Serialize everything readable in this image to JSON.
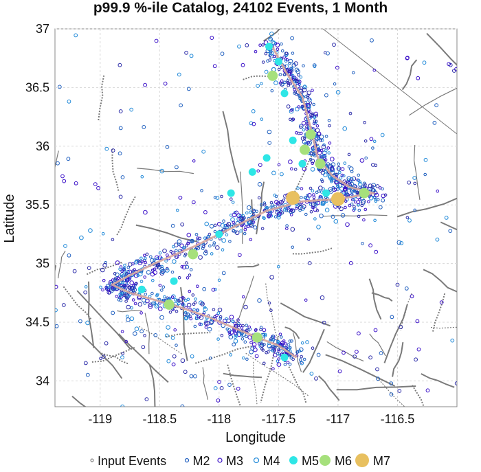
{
  "chart_data": {
    "type": "scatter",
    "title": "p99.9 %-ile Catalog, 24102 Events, 1 Month",
    "xlabel": "Longitude",
    "ylabel": "Latitude",
    "xlim": [
      -119.38,
      -116.0
    ],
    "ylim": [
      33.78,
      37.0
    ],
    "xticks": [
      -119,
      -118.5,
      -118,
      -117.5,
      -117,
      -116.5
    ],
    "xtick_labels": [
      "-119",
      "-118.5",
      "-118",
      "-117.5",
      "-117",
      "-116.5"
    ],
    "yticks": [
      34,
      34.5,
      35,
      35.5,
      36,
      36.5,
      37
    ],
    "ytick_labels": [
      "34",
      "34.5",
      "35",
      "35.5",
      "36",
      "36.5",
      "37"
    ],
    "grid": true,
    "legend_position": "bottom",
    "legend": [
      {
        "name": "Input Events",
        "marker": "tiny-circle",
        "color": "#888888"
      },
      {
        "name": "M2",
        "marker": "small-circle",
        "color": "#1f5fbf"
      },
      {
        "name": "M3",
        "marker": "circle",
        "color": "#3a10c8"
      },
      {
        "name": "M4",
        "marker": "circle",
        "color": "#1e88d8"
      },
      {
        "name": "M5",
        "marker": "filled",
        "color": "#2ee6e6"
      },
      {
        "name": "M6",
        "marker": "filled",
        "color": "#a6e07c"
      },
      {
        "name": "M7",
        "marker": "filled",
        "color": "#e8c060"
      }
    ],
    "rupture_trace": [
      [
        -117.57,
        36.88
      ],
      [
        -117.43,
        36.62
      ],
      [
        -117.3,
        36.42
      ],
      [
        -117.22,
        36.12
      ],
      [
        -117.17,
        35.9
      ],
      [
        -117.05,
        35.75
      ],
      [
        -116.9,
        35.65
      ],
      [
        -116.7,
        35.6
      ],
      [
        -117.0,
        35.55
      ],
      [
        -117.3,
        35.53
      ],
      [
        -117.6,
        35.45
      ],
      [
        -117.9,
        35.3
      ],
      [
        -118.2,
        35.15
      ],
      [
        -118.5,
        35.02
      ],
      [
        -118.75,
        34.9
      ],
      [
        -118.9,
        34.82
      ],
      [
        -118.75,
        34.75
      ],
      [
        -118.4,
        34.65
      ],
      [
        -118.1,
        34.55
      ],
      [
        -117.8,
        34.42
      ],
      [
        -117.5,
        34.3
      ],
      [
        -117.35,
        34.2
      ]
    ],
    "large_events": [
      {
        "mag_class": "M7",
        "lon": -117.38,
        "lat": 35.56
      },
      {
        "mag_class": "M7",
        "lon": -117.0,
        "lat": 35.55
      },
      {
        "mag_class": "M6",
        "lon": -117.55,
        "lat": 36.6
      },
      {
        "mag_class": "M6",
        "lon": -117.23,
        "lat": 36.1
      },
      {
        "mag_class": "M6",
        "lon": -117.28,
        "lat": 35.97
      },
      {
        "mag_class": "M6",
        "lon": -117.15,
        "lat": 35.85
      },
      {
        "mag_class": "M6",
        "lon": -116.78,
        "lat": 35.6
      },
      {
        "mag_class": "M6",
        "lon": -118.42,
        "lat": 34.65
      },
      {
        "mag_class": "M6",
        "lon": -117.68,
        "lat": 34.37
      },
      {
        "mag_class": "M6",
        "lon": -118.22,
        "lat": 35.08
      },
      {
        "mag_class": "M5",
        "lon": -117.58,
        "lat": 36.85
      },
      {
        "mag_class": "M5",
        "lon": -117.5,
        "lat": 36.72
      },
      {
        "mag_class": "M5",
        "lon": -117.45,
        "lat": 36.45
      },
      {
        "mag_class": "M5",
        "lon": -117.38,
        "lat": 36.05
      },
      {
        "mag_class": "M5",
        "lon": -117.3,
        "lat": 35.85
      },
      {
        "mag_class": "M5",
        "lon": -117.6,
        "lat": 35.9
      },
      {
        "mag_class": "M5",
        "lon": -117.72,
        "lat": 35.78
      },
      {
        "mag_class": "M5",
        "lon": -117.9,
        "lat": 35.6
      },
      {
        "mag_class": "M5",
        "lon": -118.0,
        "lat": 35.25
      },
      {
        "mag_class": "M5",
        "lon": -118.38,
        "lat": 34.85
      },
      {
        "mag_class": "M5",
        "lon": -118.65,
        "lat": 34.78
      },
      {
        "mag_class": "M5",
        "lon": -117.45,
        "lat": 34.2
      },
      {
        "mag_class": "M5",
        "lon": -117.1,
        "lat": 35.6
      }
    ]
  }
}
